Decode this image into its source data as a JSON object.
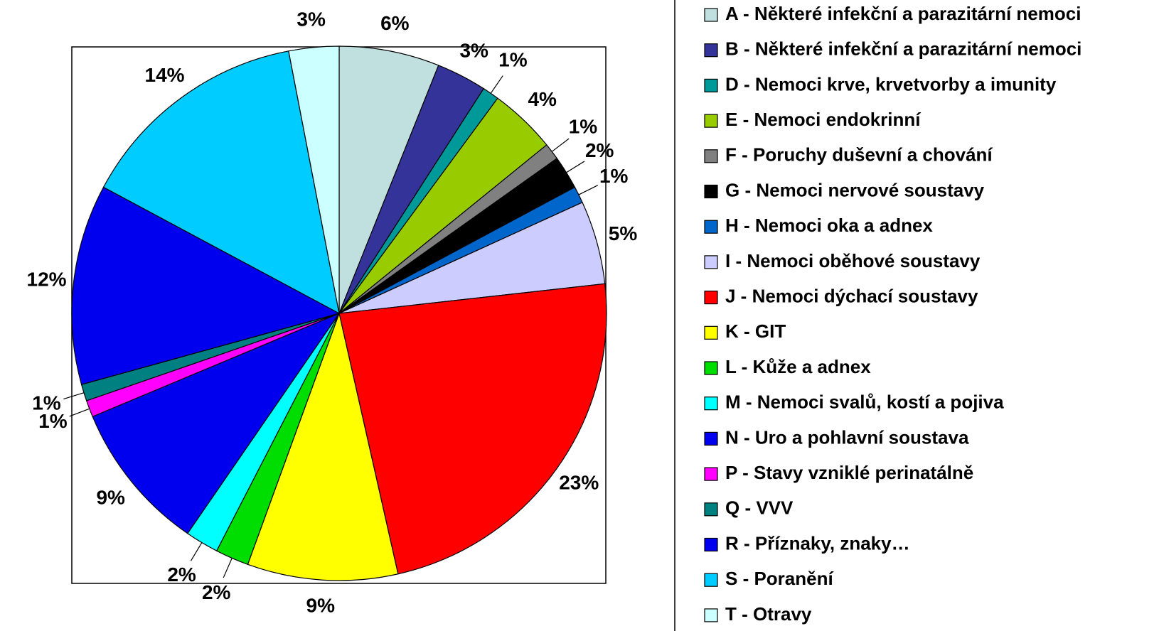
{
  "chart_data": {
    "type": "pie",
    "categories": [
      "A - Některé infekční a parazitární nemoci",
      "B - Některé infekční a parazitární nemoci",
      "D - Nemoci krve, krvetvorby a imunity",
      "E - Nemoci endokrinní",
      "F - Poruchy duševní a chování",
      "G - Nemoci nervové soustavy",
      "H - Nemoci oka a adnex",
      "I - Nemoci oběhové soustavy",
      "J - Nemoci dýchací soustavy",
      "K - GIT",
      "L - Kůže a adnex",
      "M - Nemoci svalů, kostí a pojiva",
      "N - Uro a pohlavní soustava",
      "P - Stavy vzniklé perinatálně",
      "Q - VVV",
      "R - Příznaky, znaky…",
      "S - Poranění",
      "T - Otravy"
    ],
    "values": [
      6,
      3,
      1,
      4,
      1,
      2,
      1,
      5,
      23,
      9,
      2,
      2,
      9,
      1,
      1,
      12,
      14,
      3
    ],
    "value_labels": [
      "6%",
      "3%",
      "1%",
      "4%",
      "1%",
      "2%",
      "1%",
      "5%",
      "23%",
      "9%",
      "2%",
      "2%",
      "9%",
      "1%",
      "1%",
      "12%",
      "14%",
      "3%"
    ],
    "colors": [
      "#c0e0e0",
      "#333399",
      "#009999",
      "#99cc00",
      "#808080",
      "#000000",
      "#0066cc",
      "#ccccff",
      "#ff0000",
      "#ffff00",
      "#00dd00",
      "#00ffff",
      "#0000ee",
      "#ff00ff",
      "#008080",
      "#0000ee",
      "#00ccff",
      "#ccffff"
    ]
  }
}
